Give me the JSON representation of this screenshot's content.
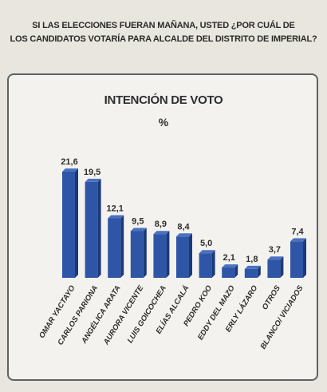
{
  "question": {
    "line1": "SI LAS ELECCIONES FUERAN MAÑANA, USTED ¿POR CUÁL DE",
    "line2": "LOS CANDIDATOS VOTARÍA  PARA ALCALDE DEL DISTRITO DE IMPERIAL?"
  },
  "colors": {
    "bar": "#2f56a6",
    "bar_dark": "#1c3a78",
    "bar_light": "#4b72c0",
    "text": "#2e2e2e"
  },
  "chart_data": {
    "type": "bar",
    "title": "INTENCIÓN DE VOTO",
    "subtitle": "%",
    "categories": [
      "OMAR YACTAYO",
      "CARLOS PARIONA",
      "ANGÉLICA ARATA",
      "AURORA VICENTE",
      "LUIS GOICOCHEA",
      "ELÍAS ALCALÁ",
      "PEDRO KOO",
      "EDDY DEL MAZO",
      "ERLY LÁZARO",
      "OTROS",
      "BLANCO/ VICIADOS"
    ],
    "values": [
      21.6,
      19.5,
      12.1,
      9.5,
      8.9,
      8.4,
      5.0,
      2.1,
      1.8,
      3.7,
      7.4
    ],
    "labels": [
      "21,6",
      "19,5",
      "12,1",
      "9,5",
      "8,9",
      "8,4",
      "5,0",
      "2,1",
      "1,8",
      "3,7",
      "7,4"
    ],
    "ylim": [
      0,
      22
    ],
    "grid": false,
    "legend": "none"
  }
}
